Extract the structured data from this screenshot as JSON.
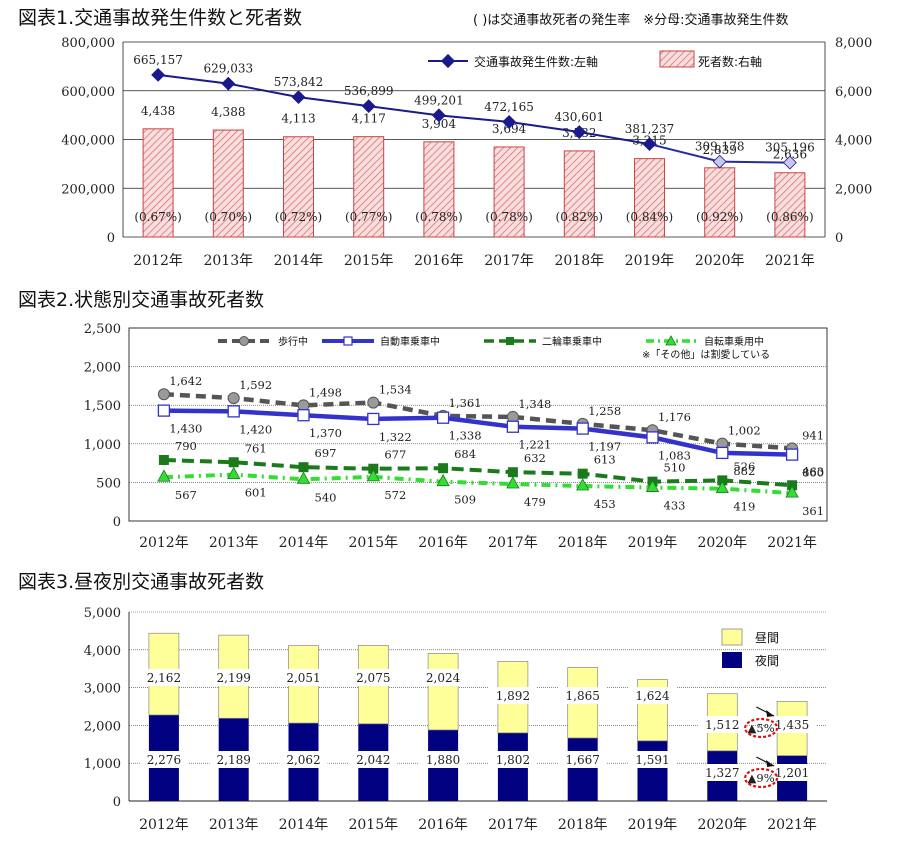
{
  "chart1": {
    "title": "図表1.交通事故発生件数と死者数",
    "note": "( )は交通事故死者の発生率　※分母:交通事故発生件数",
    "years": [
      "2012年",
      "2013年",
      "2014年",
      "2015年",
      "2016年",
      "2017年",
      "2018年",
      "2019年",
      "2020年",
      "2021年"
    ],
    "left_ticks": [
      "0",
      "200,000",
      "400,000",
      "600,000",
      "800,000"
    ],
    "right_ticks": [
      "0",
      "2,000",
      "4,000",
      "6,000",
      "8,000"
    ],
    "legend": {
      "line": "交通事故発生件数:左軸",
      "bar": "死者数:右軸"
    },
    "colors": {
      "line": "#1a1a8c",
      "bar_fill": "#f6d3d3",
      "bar_stroke": "#cc4444"
    }
  },
  "chart2": {
    "title": "図表2.状態別交通事故死者数",
    "years": [
      "2012年",
      "2013年",
      "2014年",
      "2015年",
      "2016年",
      "2017年",
      "2018年",
      "2019年",
      "2020年",
      "2021年"
    ],
    "y_ticks": [
      "0",
      "500",
      "1,000",
      "1,500",
      "2,000",
      "2,500"
    ],
    "legend_note": "※「その他」は割愛している",
    "colors": {
      "walk": "#555555",
      "car": "#3333cc",
      "moto": "#1b7a1b",
      "bike": "#33dd33"
    }
  },
  "chart3": {
    "title": "図表3.昼夜別交通事故死者数",
    "years": [
      "2012年",
      "2013年",
      "2014年",
      "2015年",
      "2016年",
      "2017年",
      "2018年",
      "2019年",
      "2020年",
      "2021年"
    ],
    "y_ticks": [
      "0",
      "1,000",
      "2,000",
      "3,000",
      "4,000",
      "5,000"
    ],
    "legend": {
      "day": "昼間",
      "night": "夜間"
    },
    "annotations": {
      "day_change": "▲5%",
      "night_change": "▲9%"
    },
    "colors": {
      "day": "#ffff99",
      "night": "#000080"
    }
  },
  "chart_data": [
    {
      "type": "bar",
      "title": "図表1.交通事故発生件数と死者数",
      "categories": [
        "2012年",
        "2013年",
        "2014年",
        "2015年",
        "2016年",
        "2017年",
        "2018年",
        "2019年",
        "2020年",
        "2021年"
      ],
      "ylim_left": [
        0,
        800000
      ],
      "ylim_right": [
        0,
        8000
      ],
      "series": [
        {
          "name": "交通事故発生件数:左軸",
          "kind": "line",
          "axis": "left",
          "values": [
            665157,
            629033,
            573842,
            536899,
            499201,
            472165,
            430601,
            381237,
            309178,
            305196
          ],
          "labels": [
            "665,157",
            "629,033",
            "573,842",
            "536,899",
            "499,201",
            "472,165",
            "430,601",
            "381,237",
            "309,178",
            "305,196"
          ]
        },
        {
          "name": "死者数:右軸",
          "kind": "bar",
          "axis": "right",
          "values": [
            4438,
            4388,
            4113,
            4117,
            3904,
            3694,
            3532,
            3215,
            2839,
            2636
          ],
          "labels": [
            "4,438",
            "4,388",
            "4,113",
            "4,117",
            "3,904",
            "3,694",
            "3,532",
            "3,215",
            "2,839",
            "2,636"
          ],
          "rates": [
            "(0.67%)",
            "(0.70%)",
            "(0.72%)",
            "(0.77%)",
            "(0.78%)",
            "(0.78%)",
            "(0.82%)",
            "(0.84%)",
            "(0.92%)",
            "(0.86%)"
          ]
        }
      ],
      "grid": true,
      "legend_position": "top-right"
    },
    {
      "type": "line",
      "title": "図表2.状態別交通事故死者数",
      "categories": [
        "2012年",
        "2013年",
        "2014年",
        "2015年",
        "2016年",
        "2017年",
        "2018年",
        "2019年",
        "2020年",
        "2021年"
      ],
      "ylim": [
        0,
        2500
      ],
      "series": [
        {
          "name": "歩行中",
          "key": "walk",
          "values": [
            1642,
            1592,
            1498,
            1534,
            1361,
            1348,
            1258,
            1176,
            1002,
            941
          ],
          "labels": [
            "1,642",
            "1,592",
            "1,498",
            "1,534",
            "1,361",
            "1,348",
            "1,258",
            "1,176",
            "1,002",
            "941"
          ]
        },
        {
          "name": "自動車乗車中",
          "key": "car",
          "values": [
            1430,
            1420,
            1370,
            1322,
            1338,
            1221,
            1197,
            1083,
            882,
            860
          ],
          "labels": [
            "1,430",
            "1,420",
            "1,370",
            "1,322",
            "1,338",
            "1,221",
            "1,197",
            "1,083",
            "882",
            "860"
          ]
        },
        {
          "name": "二輪車乗車中",
          "key": "moto",
          "values": [
            790,
            761,
            697,
            677,
            684,
            632,
            613,
            510,
            526,
            463
          ],
          "labels": [
            "790",
            "761",
            "697",
            "677",
            "684",
            "632",
            "613",
            "510",
            "526",
            "463"
          ]
        },
        {
          "name": "自転車乗用中",
          "key": "bike",
          "values": [
            567,
            601,
            540,
            572,
            509,
            479,
            453,
            433,
            419,
            361
          ],
          "labels": [
            "567",
            "601",
            "540",
            "572",
            "509",
            "479",
            "453",
            "433",
            "419",
            "361"
          ]
        }
      ],
      "grid": true,
      "legend_position": "top"
    },
    {
      "type": "bar",
      "stacked": true,
      "title": "図表3.昼夜別交通事故死者数",
      "categories": [
        "2012年",
        "2013年",
        "2014年",
        "2015年",
        "2016年",
        "2017年",
        "2018年",
        "2019年",
        "2020年",
        "2021年"
      ],
      "ylim": [
        0,
        5000
      ],
      "series": [
        {
          "name": "夜間",
          "key": "night",
          "values": [
            2276,
            2189,
            2062,
            2042,
            1880,
            1802,
            1667,
            1591,
            1327,
            1201
          ],
          "labels": [
            "2,276",
            "2,189",
            "2,062",
            "2,042",
            "1,880",
            "1,802",
            "1,667",
            "1,591",
            "1,327",
            "1,201"
          ]
        },
        {
          "name": "昼間",
          "key": "day",
          "values": [
            2162,
            2199,
            2051,
            2075,
            2024,
            1892,
            1865,
            1624,
            1512,
            1435
          ],
          "labels": [
            "2,162",
            "2,199",
            "2,051",
            "2,075",
            "2,024",
            "1,892",
            "1,865",
            "1,624",
            "1,512",
            "1,435"
          ]
        }
      ],
      "grid": true,
      "legend_position": "top-right"
    }
  ]
}
